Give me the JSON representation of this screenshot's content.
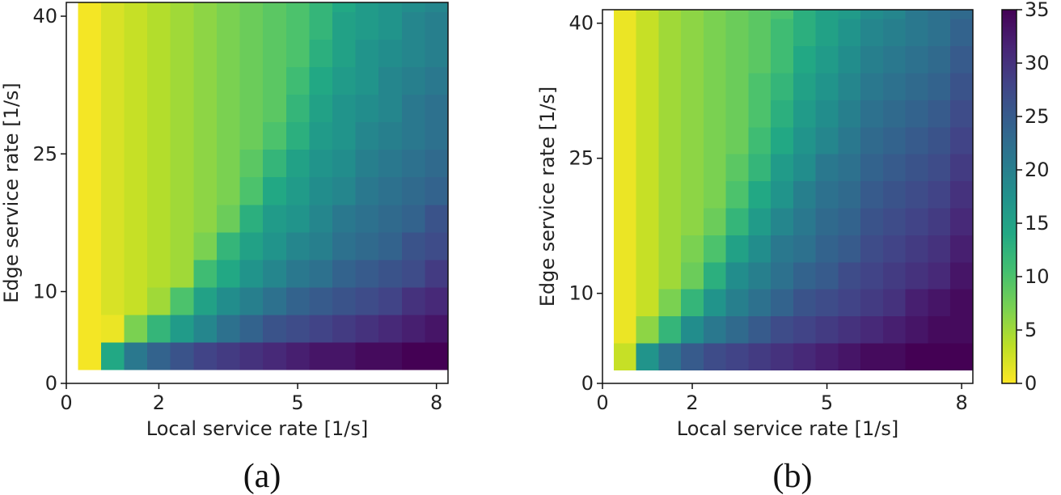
{
  "chart_data": [
    {
      "type": "heatmap",
      "caption": "(a)",
      "xlabel": "Local service rate [1/s]",
      "ylabel": "Edge service rate [1/s]",
      "x_ticks": [
        {
          "value": 0,
          "label": "0"
        },
        {
          "value": 2,
          "label": "2"
        },
        {
          "value": 5,
          "label": "5"
        },
        {
          "value": 8,
          "label": "8"
        }
      ],
      "y_ticks": [
        {
          "value": 0,
          "label": "0"
        },
        {
          "value": 10,
          "label": "10"
        },
        {
          "value": 25,
          "label": "25"
        },
        {
          "value": 40,
          "label": "40"
        }
      ],
      "xlim": [
        0,
        8.25
      ],
      "ylim": [
        0,
        41.5
      ],
      "x_values": [
        0.5,
        1.0,
        1.5,
        2.0,
        2.5,
        3.0,
        3.5,
        4.0,
        4.5,
        5.0,
        5.5,
        6.0,
        6.5,
        7.0,
        7.5,
        8.0
      ],
      "y_values": [
        3,
        6,
        9,
        12,
        15,
        18,
        21,
        24,
        27,
        30,
        33,
        36,
        39,
        42
      ],
      "cell_width": 0.5,
      "cell_height": 3,
      "color_range": [
        0,
        35
      ],
      "colormap": "viridis_r",
      "z": [
        [
          0.5,
          14,
          21,
          24,
          26,
          28,
          29,
          30,
          31,
          32,
          33,
          33,
          34,
          34,
          35,
          35
        ],
        [
          0.5,
          1,
          7,
          12,
          16,
          19,
          22,
          24,
          26,
          27,
          28,
          29,
          30,
          31,
          32,
          33
        ],
        [
          0.5,
          2,
          3,
          5,
          10,
          15,
          18,
          20,
          22,
          24,
          25,
          26,
          27,
          28,
          30,
          31
        ],
        [
          0.5,
          2,
          3,
          4,
          5,
          11,
          14,
          17,
          19,
          21,
          22,
          24,
          25,
          26,
          27,
          29
        ],
        [
          0.5,
          2,
          3,
          4,
          5,
          7,
          12,
          15,
          17,
          19,
          20,
          22,
          23,
          24,
          26,
          27
        ],
        [
          0.5,
          2,
          3,
          4,
          5,
          6,
          8,
          13,
          16,
          17,
          19,
          21,
          22,
          23,
          24,
          26
        ],
        [
          0.5,
          2,
          3,
          4,
          5,
          6,
          7,
          10,
          14,
          16,
          18,
          19,
          21,
          22,
          23,
          24
        ],
        [
          0.5,
          2,
          3,
          4,
          5,
          6,
          7,
          9,
          12,
          15,
          17,
          18,
          20,
          21,
          22,
          23
        ],
        [
          0.5,
          2,
          3,
          4,
          5,
          6,
          7,
          8,
          10,
          13,
          16,
          17,
          19,
          20,
          21,
          22
        ],
        [
          0.5,
          2,
          3,
          4,
          5,
          6,
          7,
          8,
          9,
          12,
          15,
          17,
          18,
          19,
          21,
          22
        ],
        [
          0.5,
          2,
          3,
          4,
          5,
          6,
          7,
          8,
          9,
          11,
          14,
          16,
          17,
          19,
          20,
          21
        ],
        [
          0.5,
          2,
          3,
          4,
          5,
          6,
          7,
          8,
          9,
          10,
          13,
          15,
          17,
          18,
          19,
          20
        ],
        [
          0.5,
          2,
          3,
          4,
          5,
          6,
          7,
          8,
          9,
          10,
          12,
          15,
          16,
          17,
          19,
          20
        ],
        [
          0.5,
          2,
          3,
          4,
          5,
          6,
          7,
          8,
          9,
          10,
          12,
          14,
          16,
          17,
          18,
          19
        ]
      ]
    },
    {
      "type": "heatmap",
      "caption": "(b)",
      "xlabel": "Local service rate [1/s]",
      "ylabel": "Edge service rate [1/s]",
      "x_ticks": [
        {
          "value": 0,
          "label": "0"
        },
        {
          "value": 2,
          "label": "2"
        },
        {
          "value": 5,
          "label": "5"
        },
        {
          "value": 8,
          "label": "8"
        }
      ],
      "y_ticks": [
        {
          "value": 0,
          "label": "0"
        },
        {
          "value": 10,
          "label": "10"
        },
        {
          "value": 25,
          "label": "25"
        },
        {
          "value": 40,
          "label": "40"
        }
      ],
      "xlim": [
        0,
        8.25
      ],
      "ylim": [
        0,
        41.5
      ],
      "x_values": [
        0.5,
        1.0,
        1.5,
        2.0,
        2.5,
        3.0,
        3.5,
        4.0,
        4.5,
        5.0,
        5.5,
        6.0,
        6.5,
        7.0,
        7.5,
        8.0
      ],
      "y_values": [
        3,
        6,
        9,
        12,
        15,
        18,
        21,
        24,
        27,
        30,
        33,
        36,
        39,
        42
      ],
      "cell_width": 0.5,
      "cell_height": 3,
      "color_range": [
        0,
        35
      ],
      "colormap": "viridis_r",
      "colorbar": {
        "ticks": [
          {
            "value": 0,
            "label": "0"
          },
          {
            "value": 5,
            "label": "5"
          },
          {
            "value": 10,
            "label": "10"
          },
          {
            "value": 15,
            "label": "15"
          },
          {
            "value": 20,
            "label": "20"
          },
          {
            "value": 25,
            "label": "25"
          },
          {
            "value": 30,
            "label": "30"
          },
          {
            "value": 35,
            "label": "35"
          }
        ]
      },
      "z": [
        [
          3,
          17,
          22,
          25,
          27,
          28,
          29,
          30,
          31,
          32,
          33,
          34,
          34,
          35,
          35,
          35
        ],
        [
          1,
          6,
          12,
          18,
          21,
          23,
          25,
          27,
          28,
          29,
          30,
          31,
          32,
          33,
          34,
          34
        ],
        [
          1,
          3,
          7,
          12,
          17,
          20,
          22,
          24,
          26,
          27,
          28,
          29,
          30,
          32,
          33,
          34
        ],
        [
          1,
          3,
          5,
          8,
          13,
          18,
          20,
          22,
          24,
          25,
          27,
          28,
          29,
          30,
          31,
          33
        ],
        [
          1,
          3,
          5,
          7,
          10,
          15,
          18,
          21,
          22,
          24,
          25,
          27,
          28,
          29,
          30,
          32
        ],
        [
          1,
          3,
          5,
          6,
          8,
          12,
          16,
          19,
          21,
          23,
          24,
          26,
          27,
          28,
          29,
          31
        ],
        [
          1,
          3,
          5,
          6,
          7,
          10,
          14,
          17,
          20,
          22,
          23,
          25,
          26,
          27,
          28,
          30
        ],
        [
          1,
          3,
          5,
          6,
          7,
          9,
          12,
          16,
          18,
          21,
          22,
          24,
          25,
          26,
          27,
          29
        ],
        [
          1,
          3,
          5,
          6,
          7,
          8,
          11,
          14,
          17,
          19,
          21,
          23,
          24,
          25,
          26,
          28
        ],
        [
          1,
          3,
          5,
          6,
          7,
          8,
          10,
          13,
          16,
          18,
          20,
          22,
          23,
          24,
          25,
          27
        ],
        [
          1,
          3,
          5,
          6,
          7,
          8,
          10,
          12,
          15,
          17,
          19,
          21,
          22,
          23,
          24,
          26
        ],
        [
          1,
          3,
          5,
          6,
          7,
          8,
          9,
          11,
          14,
          16,
          18,
          20,
          21,
          22,
          23,
          25
        ],
        [
          1,
          3,
          5,
          6,
          7,
          8,
          9,
          11,
          13,
          15,
          17,
          19,
          20,
          21,
          22,
          24
        ],
        [
          1,
          3,
          5,
          6,
          7,
          8,
          9,
          10,
          13,
          15,
          16,
          18,
          19,
          21,
          22,
          23
        ]
      ]
    }
  ]
}
